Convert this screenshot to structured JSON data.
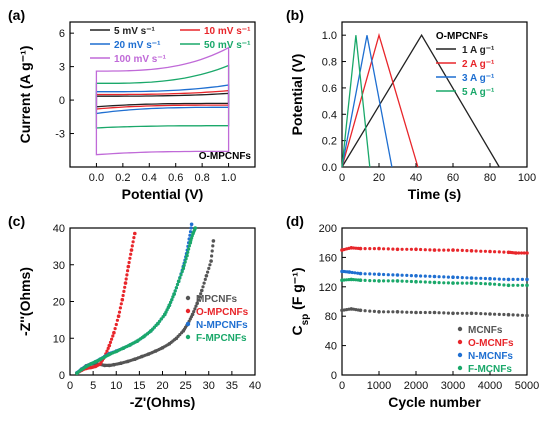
{
  "chart_data": [
    {
      "panel": "(a)",
      "type": "line",
      "xlabel": "Potential (V)",
      "ylabel": "Current (A g⁻¹)",
      "xlim": [
        -0.2,
        1.2
      ],
      "ylim": [
        -6,
        7
      ],
      "xticks": [
        "0.0",
        "0.2",
        "0.4",
        "0.6",
        "0.8",
        "1.0"
      ],
      "yticks": [
        "-3",
        "0",
        "3",
        "6"
      ],
      "annotation": "O-MPCNFs",
      "legend_position": "top-right",
      "series": [
        {
          "name": "5 mV s⁻¹",
          "color": "#222222",
          "vmin": 0.0,
          "vmax": 1.0,
          "i_top": 0.35,
          "i_top_end": 0.6,
          "i_bottom": -0.3,
          "i_bottom_start": -0.6
        },
        {
          "name": "10 mV s⁻¹",
          "color": "#e8262b",
          "vmin": 0.0,
          "vmax": 1.0,
          "i_top": 0.5,
          "i_top_end": 0.85,
          "i_bottom": -0.45,
          "i_bottom_start": -0.8
        },
        {
          "name": "20 mV s⁻¹",
          "color": "#1f6fd1",
          "vmin": 0.0,
          "vmax": 1.0,
          "i_top": 0.75,
          "i_top_end": 1.35,
          "i_bottom": -0.65,
          "i_bottom_start": -1.2
        },
        {
          "name": "50 mV s⁻¹",
          "color": "#1aa86a",
          "vmin": 0.0,
          "vmax": 1.0,
          "i_top": 1.5,
          "i_top_end": 3.1,
          "i_bottom": -2.3,
          "i_bottom_start": -2.5
        },
        {
          "name": "100 mV s⁻¹",
          "color": "#c06ad8",
          "vmin": 0.0,
          "vmax": 1.0,
          "i_top": 2.6,
          "i_top_end": 4.7,
          "i_bottom": -4.6,
          "i_bottom_start": -4.9
        }
      ]
    },
    {
      "panel": "(b)",
      "type": "line",
      "xlabel": "Time (s)",
      "ylabel": "Potential (V)",
      "xlim": [
        0,
        100
      ],
      "ylim": [
        0,
        1.1
      ],
      "xticks": [
        "0",
        "20",
        "40",
        "60",
        "80",
        "100"
      ],
      "yticks": [
        "0.0",
        "0.2",
        "0.4",
        "0.6",
        "0.8",
        "1.0"
      ],
      "legend_title": "O-MPCNFs",
      "series": [
        {
          "name": "1 A g⁻¹",
          "color": "#222222",
          "t": [
            0,
            43,
            85
          ],
          "v": [
            0,
            1.0,
            0
          ]
        },
        {
          "name": "2 A g⁻¹",
          "color": "#e8262b",
          "t": [
            0,
            20,
            41
          ],
          "v": [
            0,
            1.0,
            0
          ]
        },
        {
          "name": "3 A g⁻¹",
          "color": "#1f6fd1",
          "t": [
            0,
            13.5,
            27
          ],
          "v": [
            0,
            1.0,
            0
          ]
        },
        {
          "name": "5 A g⁻¹",
          "color": "#1aa86a",
          "t": [
            0,
            7.5,
            15
          ],
          "v": [
            0,
            1.0,
            0
          ]
        }
      ]
    },
    {
      "panel": "(c)",
      "type": "scatter",
      "xlabel": "-Z'(Ohms)",
      "ylabel": "-Z''(Ohms)",
      "xlim": [
        0,
        40
      ],
      "ylim": [
        0,
        40
      ],
      "xticks": [
        "0",
        "5",
        "10",
        "15",
        "20",
        "25",
        "30",
        "35",
        "40"
      ],
      "yticks": [
        "0",
        "10",
        "20",
        "30",
        "40"
      ],
      "legend_position": "bottom-right",
      "series": [
        {
          "name": "MPCNFs",
          "color": "#555555",
          "x": [
            1.5,
            2.5,
            3.5,
            4.5,
            5.5,
            6.5,
            7.5,
            8.5,
            9.5,
            11,
            12.5,
            14,
            15.5,
            17,
            18.5,
            20,
            21.5,
            23,
            24.5,
            25.5,
            26.5,
            27.5,
            28.5,
            29.5,
            30.5,
            31
          ],
          "y": [
            0.5,
            1.5,
            2.5,
            3.0,
            3.1,
            2.9,
            2.6,
            2.6,
            2.8,
            3.2,
            3.7,
            4.3,
            5.0,
            5.7,
            6.5,
            7.4,
            8.5,
            10,
            12,
            14,
            16.5,
            19.5,
            23,
            27,
            31,
            36.5
          ]
        },
        {
          "name": "O-MPCNFs",
          "color": "#e8262b",
          "x": [
            1.5,
            2.5,
            3.5,
            4.5,
            5.5,
            6.5,
            7.5,
            8.5,
            9.5,
            10.5,
            11.3,
            12,
            12.6,
            13.3,
            14
          ],
          "y": [
            0.5,
            1.3,
            1.8,
            2.0,
            2.3,
            3.0,
            5,
            8,
            11.5,
            16,
            20.5,
            25,
            29.5,
            34,
            38.5
          ]
        },
        {
          "name": "N-MPCNFs",
          "color": "#1f6fd1",
          "x": [
            1.5,
            2.5,
            3.5,
            4.5,
            5.5,
            6.5,
            7.5,
            8.5,
            10,
            11.5,
            13,
            14.5,
            16,
            17.5,
            19,
            20.5,
            21.5,
            22.5,
            23.5,
            24.5,
            25.2,
            25.8,
            26.3
          ],
          "y": [
            0.6,
            1.6,
            2.4,
            3.0,
            3.6,
            4.3,
            5.0,
            5.8,
            6.5,
            7.3,
            8.2,
            9.2,
            10.5,
            12,
            14,
            16.5,
            19,
            22,
            25.5,
            29.5,
            33,
            37,
            41
          ]
        },
        {
          "name": "F-MPCNFs",
          "color": "#1aa86a",
          "x": [
            1.5,
            2.5,
            3.5,
            4.5,
            5.5,
            6.5,
            7.5,
            8.5,
            10,
            11.5,
            13,
            14.5,
            16,
            17.5,
            19,
            20.5,
            21.5,
            22.5,
            23.5,
            24.5,
            25.3,
            26,
            26.6,
            27.1
          ],
          "y": [
            0.5,
            1.5,
            2.3,
            3.0,
            3.6,
            4.2,
            4.9,
            5.6,
            6.4,
            7.3,
            8.2,
            9.2,
            10.5,
            12,
            14,
            16.5,
            19,
            22,
            25.5,
            29,
            32.5,
            36,
            38.5,
            40
          ]
        }
      ]
    },
    {
      "panel": "(d)",
      "type": "scatter",
      "xlabel": "Cycle number",
      "ylabel": "C",
      "ylabel_sub": "sp",
      "ylabel_units": " (F g⁻¹)",
      "xlim": [
        0,
        5000
      ],
      "ylim": [
        0,
        200
      ],
      "xticks": [
        "0",
        "1000",
        "2000",
        "3000",
        "4000",
        "5000"
      ],
      "yticks": [
        "0",
        "40",
        "80",
        "120",
        "160",
        "200"
      ],
      "legend_position": "bottom-right",
      "series": [
        {
          "name": "MCNFs",
          "color": "#555555",
          "x": [
            0,
            250,
            500,
            1000,
            1500,
            2000,
            2500,
            3000,
            3500,
            4000,
            4500,
            5000
          ],
          "y": [
            88,
            90,
            88,
            86,
            86,
            85,
            85,
            84,
            84,
            83,
            82,
            81
          ]
        },
        {
          "name": "O-MCNFs",
          "color": "#e8262b",
          "x": [
            0,
            250,
            500,
            1000,
            1500,
            2000,
            2500,
            3000,
            3500,
            4000,
            4500,
            4700,
            5000
          ],
          "y": [
            170,
            173,
            172,
            172,
            171,
            171,
            170,
            170,
            169,
            168,
            167,
            166,
            166
          ]
        },
        {
          "name": "N-MCNFs",
          "color": "#1f6fd1",
          "x": [
            0,
            200,
            500,
            1000,
            1500,
            2000,
            2500,
            3000,
            3500,
            4000,
            4500,
            5000
          ],
          "y": [
            141,
            140,
            138,
            137,
            136,
            135,
            134,
            133,
            132,
            131,
            130,
            130
          ]
        },
        {
          "name": "F-MCNFs",
          "color": "#1aa86a",
          "x": [
            0,
            250,
            500,
            1000,
            1500,
            2000,
            2500,
            3000,
            3500,
            4000,
            4500,
            5000
          ],
          "y": [
            129,
            130,
            129,
            128,
            128,
            127,
            126,
            125,
            125,
            124,
            122,
            122
          ]
        }
      ]
    }
  ]
}
